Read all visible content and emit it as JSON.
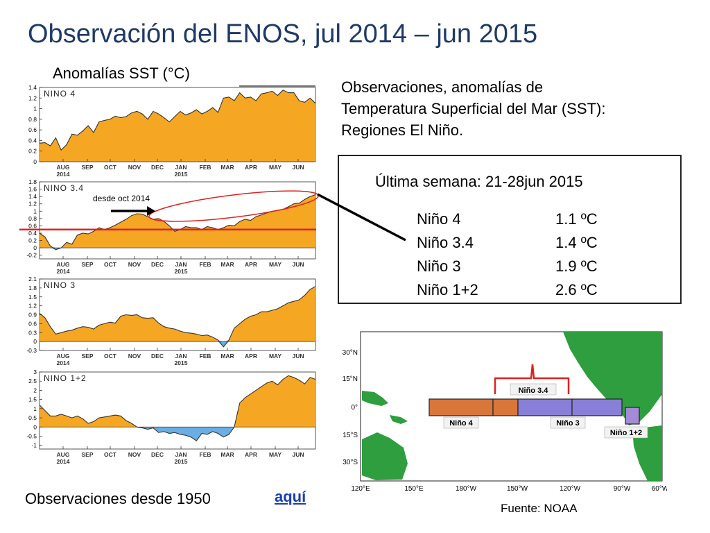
{
  "title": "Observación del ENOS, jul 2014 – jun 2015",
  "sst_label": "Anomalías SST (°C)",
  "description_lines": [
    "Observaciones, anomalías de",
    "Temperatura Superficial del Mar (SST):",
    "Regiones El Niño."
  ],
  "last_week": {
    "label": "Última semana:  21-28jun 2015",
    "regions": [
      {
        "name": "Niño 4",
        "value": "1.1 ºC"
      },
      {
        "name": "Niño 3.4",
        "value": "1.4 ºC"
      },
      {
        "name": "Niño 3",
        "value": "1.9 ºC"
      },
      {
        "name": "Niño 1+2",
        "value": "2.6 ºC"
      }
    ]
  },
  "annotation": "desde  oct 2014",
  "bottom_note": "Observaciones desde 1950",
  "link_text": "aquí",
  "source": "Fuente: NOAA",
  "colors": {
    "title": "#1f3a68",
    "positive_fill": "#f5a623",
    "negative_fill": "#6aaee6",
    "threshold_line": "#e02020",
    "link": "#1a3fb0",
    "nino4_box": "#d9763a",
    "nino3_box": "#8a7fd6",
    "nino12_box": "#a58ad8",
    "bracket": "#e02020",
    "land": "#2e9e3e"
  },
  "map": {
    "lat_labels": [
      "30°N",
      "15°N",
      "0°",
      "15°S",
      "30°S"
    ],
    "lon_labels": [
      "120°E",
      "150°E",
      "180°W",
      "150°W",
      "120°W",
      "90°W",
      "60°W"
    ],
    "box_labels": {
      "nino4": "Niño 4",
      "nino34": "Niño 3.4",
      "nino3": "Niño 3",
      "nino12": "Niño 1+2"
    }
  },
  "chart_data": [
    {
      "type": "area",
      "title": "NINO 4",
      "x_ticks": [
        "AUG\n2014",
        "SEP",
        "OCT",
        "NOV",
        "DEC",
        "JAN\n2015",
        "FEB",
        "MAR",
        "APR",
        "MAY",
        "JUN"
      ],
      "y_ticks": [
        "0",
        "0.2",
        "0.4",
        "0.6",
        "0.8",
        "1",
        "1.2",
        "1.4"
      ],
      "ylim": [
        0,
        1.4
      ],
      "y": [
        0.35,
        0.36,
        0.3,
        0.45,
        0.22,
        0.32,
        0.52,
        0.5,
        0.58,
        0.68,
        0.55,
        0.75,
        0.78,
        0.8,
        0.86,
        0.83,
        0.85,
        0.92,
        0.95,
        0.9,
        0.8,
        0.95,
        0.9,
        0.83,
        0.75,
        0.85,
        0.95,
        0.88,
        0.92,
        0.98,
        0.9,
        0.95,
        1.02,
        0.93,
        1.2,
        1.22,
        1.15,
        1.3,
        1.2,
        1.22,
        1.15,
        1.28,
        1.3,
        1.33,
        1.25,
        1.35,
        1.3,
        1.3,
        1.15,
        1.12,
        1.2,
        1.1
      ]
    },
    {
      "type": "area",
      "title": "NINO 3.4",
      "x_ticks": [
        "AUG\n2014",
        "SEP",
        "OCT",
        "NOV",
        "DEC",
        "JAN\n2015",
        "FEB",
        "MAR",
        "APR",
        "MAY",
        "JUN"
      ],
      "y_ticks": [
        "-0.2",
        "0",
        "0.2",
        "0.4",
        "0.6",
        "0.8",
        "1",
        "1.2",
        "1.4",
        "1.6",
        "1.8"
      ],
      "ylim": [
        -0.3,
        1.8
      ],
      "threshold": 0.5,
      "y": [
        0.4,
        0.3,
        0.05,
        -0.05,
        0.0,
        0.15,
        0.1,
        0.35,
        0.4,
        0.38,
        0.45,
        0.55,
        0.5,
        0.55,
        0.62,
        0.7,
        0.78,
        0.88,
        0.93,
        0.92,
        0.85,
        0.78,
        0.8,
        0.72,
        0.6,
        0.45,
        0.5,
        0.58,
        0.55,
        0.55,
        0.5,
        0.58,
        0.55,
        0.5,
        0.55,
        0.62,
        0.6,
        0.72,
        0.78,
        0.75,
        0.85,
        0.9,
        0.95,
        1.0,
        1.02,
        1.05,
        1.12,
        1.2,
        1.22,
        1.32,
        1.4,
        1.45
      ]
    },
    {
      "type": "area",
      "title": "NINO 3",
      "x_ticks": [
        "AUG\n2014",
        "SEP",
        "OCT",
        "NOV",
        "DEC",
        "JAN\n2015",
        "FEB",
        "MAR",
        "APR",
        "MAY",
        "JUN"
      ],
      "y_ticks": [
        "-0.3",
        "0",
        "0.3",
        "0.6",
        "0.9",
        "1.2",
        "1.5",
        "1.8",
        "2.1"
      ],
      "ylim": [
        -0.3,
        2.1
      ],
      "y": [
        0.95,
        0.8,
        0.5,
        0.25,
        0.3,
        0.35,
        0.38,
        0.45,
        0.5,
        0.48,
        0.42,
        0.55,
        0.6,
        0.65,
        0.62,
        0.85,
        0.9,
        0.88,
        0.9,
        0.8,
        0.78,
        0.8,
        0.62,
        0.5,
        0.45,
        0.42,
        0.35,
        0.3,
        0.28,
        0.25,
        0.2,
        0.22,
        0.15,
        0.05,
        -0.18,
        0.05,
        0.45,
        0.6,
        0.75,
        0.85,
        0.9,
        1.0,
        1.0,
        1.05,
        1.1,
        1.2,
        1.3,
        1.35,
        1.4,
        1.55,
        1.75,
        1.85
      ]
    },
    {
      "type": "area",
      "title": "NINO 1+2",
      "x_ticks": [
        "AUG\n2014",
        "SEP",
        "OCT",
        "NOV",
        "DEC",
        "JAN\n2015",
        "FEB",
        "MAR",
        "APR",
        "MAY",
        "JUN"
      ],
      "y_ticks": [
        "-1",
        "-0.5",
        "0",
        "0.5",
        "1",
        "1.5",
        "2",
        "2.5",
        "3"
      ],
      "ylim": [
        -1.2,
        3.0
      ],
      "y": [
        1.2,
        0.9,
        0.6,
        0.6,
        0.7,
        0.6,
        0.5,
        0.6,
        0.45,
        0.2,
        0.3,
        0.5,
        0.55,
        0.6,
        0.65,
        0.6,
        0.35,
        0.2,
        0.0,
        -0.05,
        -0.12,
        -0.05,
        -0.3,
        -0.25,
        -0.35,
        -0.3,
        -0.4,
        -0.45,
        -0.55,
        -0.75,
        -0.35,
        -0.4,
        -0.25,
        -0.35,
        -0.55,
        -0.4,
        0.0,
        1.3,
        1.6,
        1.8,
        2.0,
        2.2,
        2.4,
        2.5,
        2.3,
        2.6,
        2.8,
        2.7,
        2.55,
        2.35,
        2.7,
        2.6
      ]
    }
  ]
}
